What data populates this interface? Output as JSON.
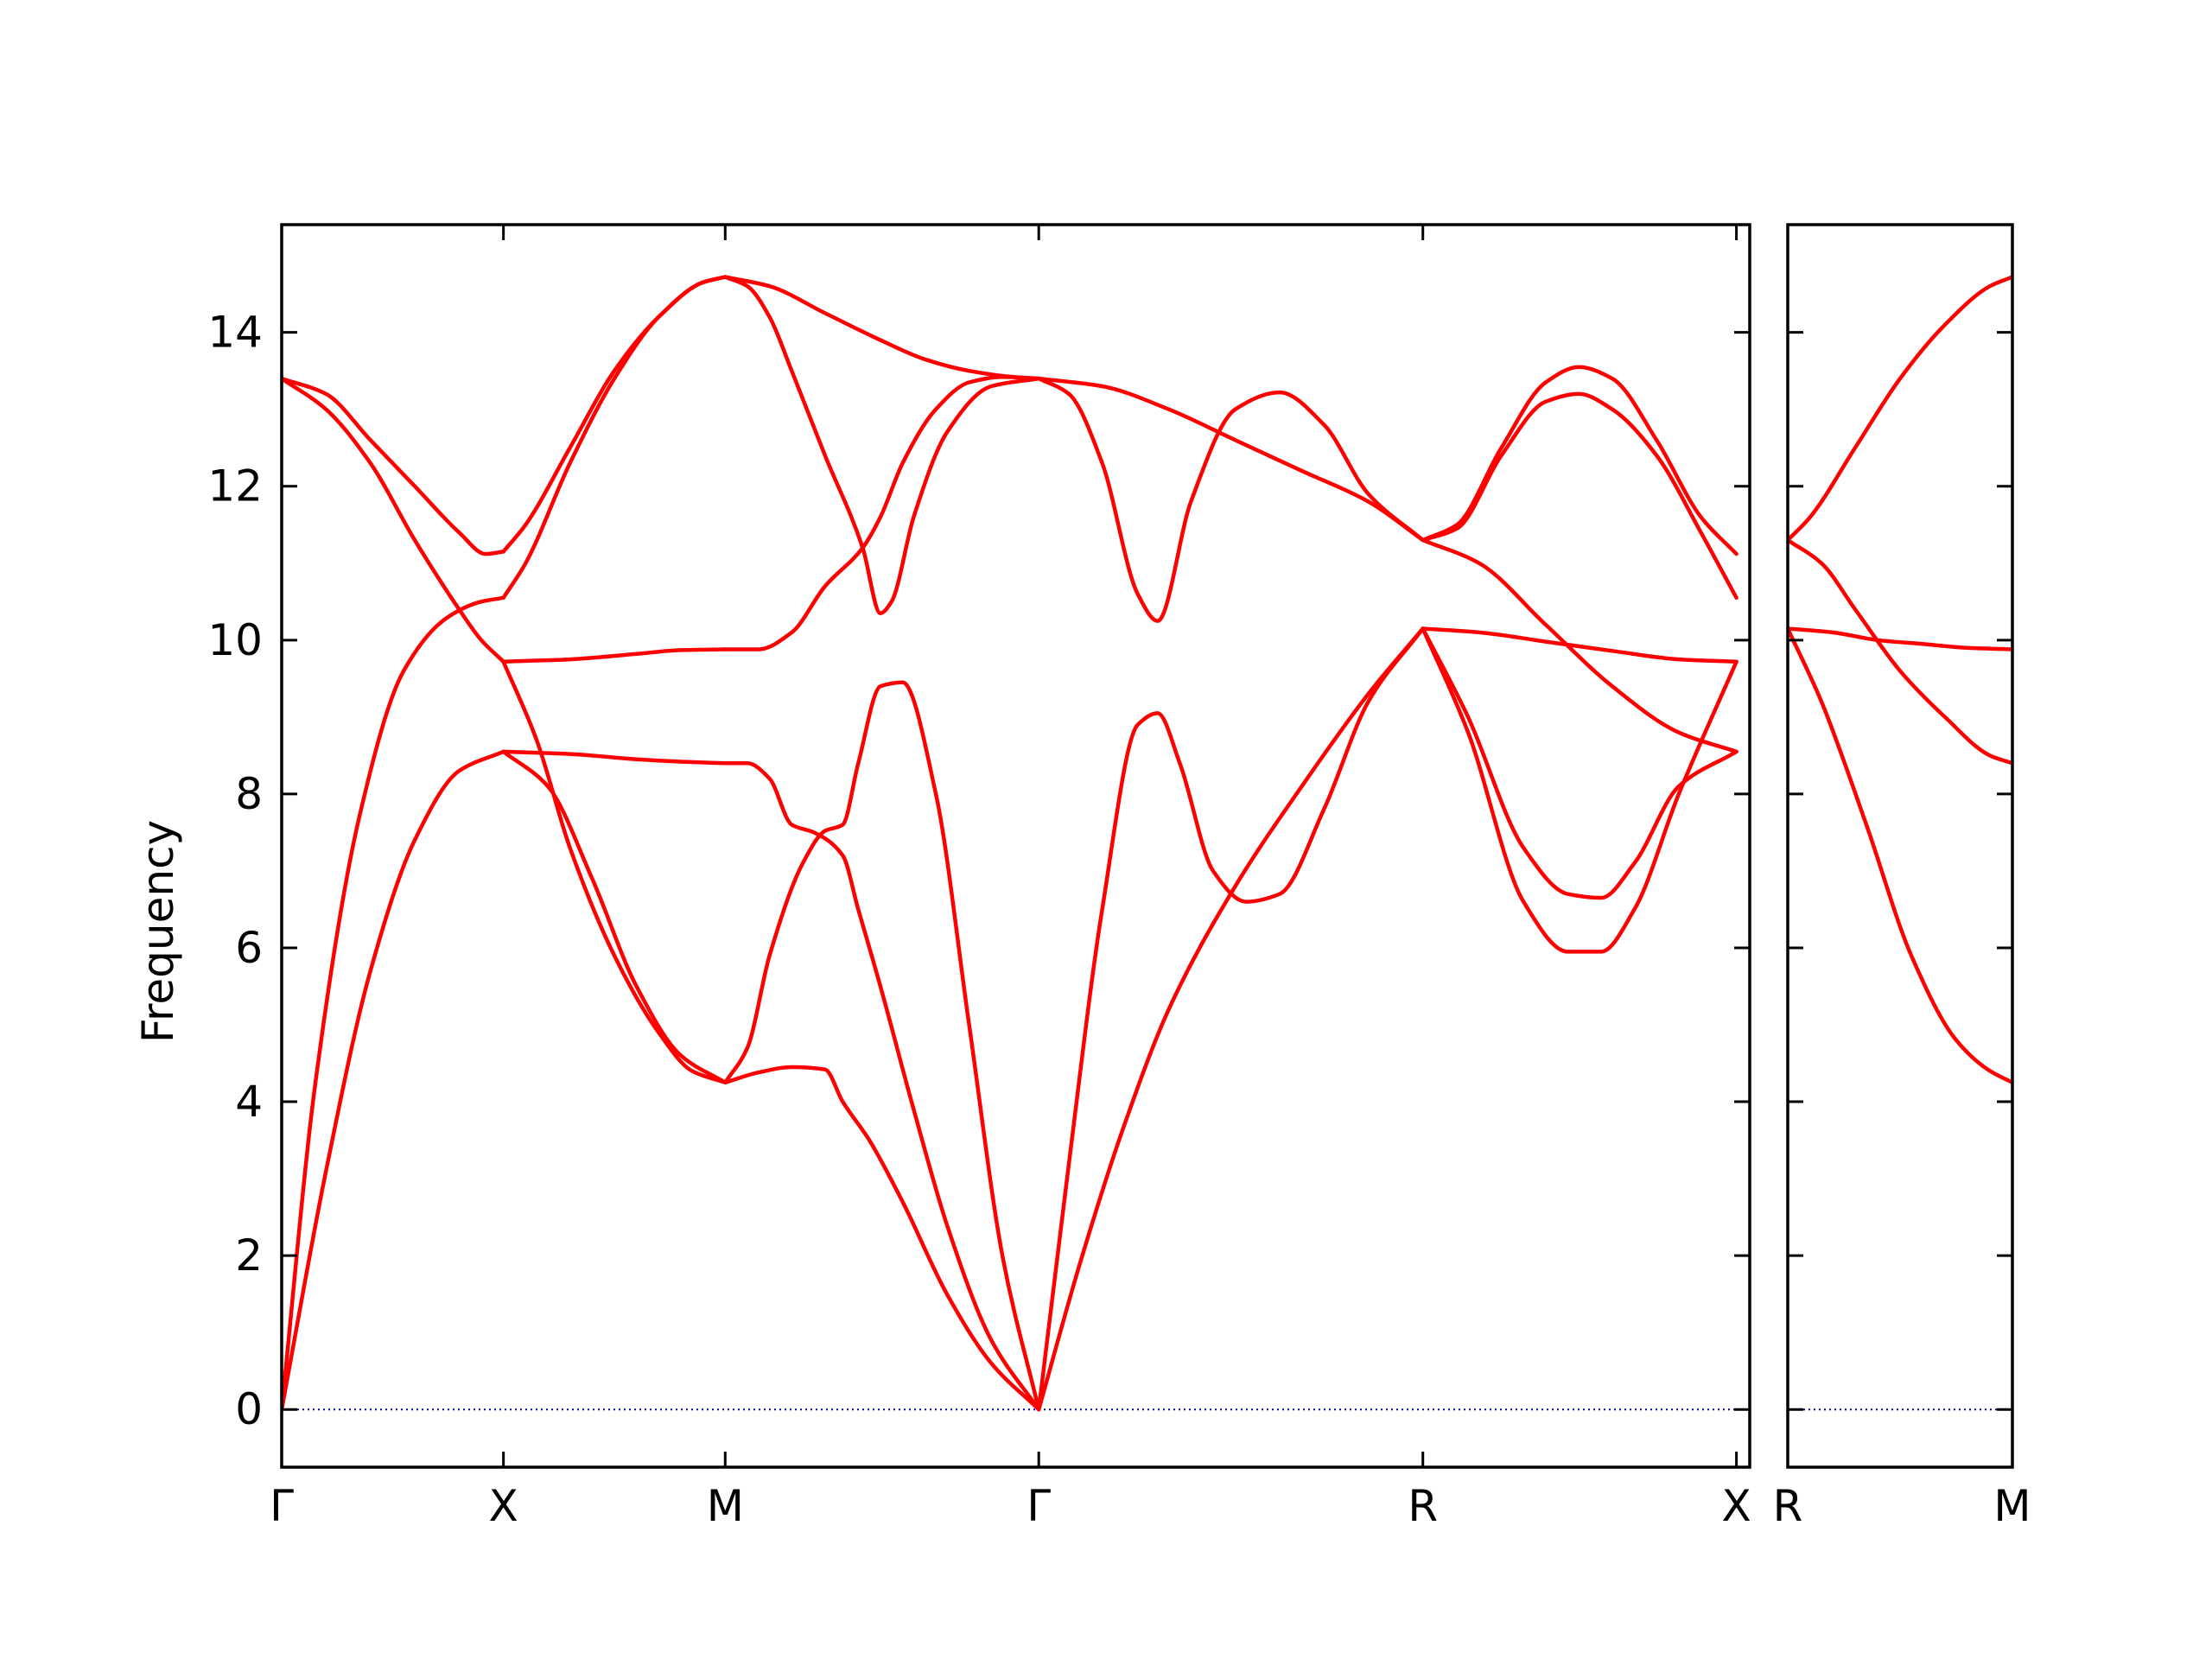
{
  "chart_data": {
    "type": "line",
    "ylabel": "Frequency",
    "ylim": [
      -0.75,
      15.4
    ],
    "yticks": [
      0,
      2,
      4,
      6,
      8,
      10,
      12,
      14
    ],
    "colors": {
      "band": "#ff0000",
      "zero_line": "#0000aa",
      "axis": "#000000"
    },
    "zero_line": {
      "y": 0,
      "style": "dotted"
    },
    "panels": [
      {
        "name": "main",
        "xlim": [
          0,
          6.62
        ],
        "x_ticks": [
          {
            "x": 0,
            "label": "Γ"
          },
          {
            "x": 1.0,
            "label": "X"
          },
          {
            "x": 2.0,
            "label": "M"
          },
          {
            "x": 3.414,
            "label": "Γ"
          },
          {
            "x": 5.146,
            "label": "R"
          },
          {
            "x": 6.56,
            "label": "X"
          }
        ],
        "series": [
          {
            "x": [
              0,
              0.2,
              0.4,
              0.6,
              0.8,
              1.0
            ],
            "y": [
              0,
              3.1,
              5.7,
              7.4,
              8.3,
              8.55
            ]
          },
          {
            "x": [
              0,
              0.15,
              0.35,
              0.55,
              0.75,
              0.9,
              1.0
            ],
            "y": [
              0,
              4.2,
              7.7,
              9.6,
              10.3,
              10.5,
              10.55
            ]
          },
          {
            "x": [
              0,
              0.2,
              0.4,
              0.6,
              0.8,
              0.92,
              1.0
            ],
            "y": [
              13.4,
              13.2,
              12.6,
              12.0,
              11.4,
              11.12,
              11.15
            ]
          },
          {
            "x": [
              0,
              0.2,
              0.4,
              0.6,
              0.8,
              0.9,
              1.0
            ],
            "y": [
              13.4,
              13.0,
              12.3,
              11.3,
              10.4,
              10.0,
              9.72
            ]
          },
          {
            "x": [
              1.0,
              1.2,
              1.4,
              1.6,
              1.8,
              2.0
            ],
            "y": [
              8.55,
              8.1,
              6.9,
              5.5,
              4.6,
              4.25
            ]
          },
          {
            "x": [
              1.0,
              1.15,
              1.3,
              1.5,
              1.7,
              1.85,
              2.0
            ],
            "y": [
              9.72,
              8.7,
              7.3,
              5.9,
              4.9,
              4.4,
              4.25
            ]
          },
          {
            "x": [
              1.0,
              1.3,
              1.6,
              1.8,
              2.0
            ],
            "y": [
              8.55,
              8.52,
              8.45,
              8.42,
              8.4
            ]
          },
          {
            "x": [
              1.0,
              1.3,
              1.6,
              1.8,
              2.0
            ],
            "y": [
              9.72,
              9.75,
              9.82,
              9.87,
              9.88
            ]
          },
          {
            "x": [
              1.0,
              1.1,
              1.3,
              1.5,
              1.7,
              1.9,
              2.0
            ],
            "y": [
              10.55,
              11.0,
              12.3,
              13.4,
              14.2,
              14.65,
              14.72
            ]
          },
          {
            "x": [
              1.0,
              1.1,
              1.3,
              1.5,
              1.7,
              1.9,
              2.0
            ],
            "y": [
              11.15,
              11.5,
              12.5,
              13.5,
              14.2,
              14.65,
              14.72
            ]
          },
          {
            "x": [
              2.0,
              2.1,
              2.2,
              2.35,
              2.45,
              2.53,
              2.6,
              2.7,
              2.8,
              2.95,
              3.1,
              3.25,
              3.414
            ],
            "y": [
              4.25,
              4.7,
              5.9,
              7.1,
              7.52,
              7.6,
              8.4,
              9.4,
              9.45,
              8.0,
              5.0,
              2.0,
              0
            ]
          },
          {
            "x": [
              2.0,
              2.15,
              2.3,
              2.45,
              2.53,
              2.65,
              2.8,
              3.0,
              3.2,
              3.414
            ],
            "y": [
              4.25,
              4.38,
              4.45,
              4.42,
              4.0,
              3.5,
              2.7,
              1.5,
              0.6,
              0
            ]
          },
          {
            "x": [
              2.0,
              2.1,
              2.2,
              2.3,
              2.4,
              2.53,
              2.6,
              2.7,
              2.85,
              3.0,
              3.2,
              3.414
            ],
            "y": [
              8.4,
              8.4,
              8.2,
              7.6,
              7.5,
              7.2,
              6.5,
              5.5,
              3.9,
              2.4,
              0.9,
              0
            ]
          },
          {
            "x": [
              2.0,
              2.15,
              2.3,
              2.45,
              2.62,
              2.7,
              2.8,
              2.95,
              3.1,
              3.25,
              3.414
            ],
            "y": [
              9.88,
              9.88,
              10.1,
              10.7,
              11.2,
              11.6,
              12.3,
              13.0,
              13.35,
              13.42,
              13.4
            ]
          },
          {
            "x": [
              2.0,
              2.1,
              2.2,
              2.3,
              2.45,
              2.62,
              2.7,
              2.75,
              2.85,
              3.0,
              3.2,
              3.414
            ],
            "y": [
              14.72,
              14.6,
              14.2,
              13.5,
              12.4,
              11.2,
              10.35,
              10.5,
              11.6,
              12.7,
              13.3,
              13.4
            ]
          },
          {
            "x": [
              2.0,
              2.2,
              2.45,
              2.7,
              2.9,
              3.1,
              3.3,
              3.414
            ],
            "y": [
              14.72,
              14.6,
              14.25,
              13.9,
              13.65,
              13.5,
              13.42,
              13.4
            ]
          },
          {
            "x": [
              3.414,
              3.6,
              3.8,
              4.0,
              4.3,
              4.6,
              4.9,
              5.146
            ],
            "y": [
              0,
              1.9,
              3.7,
              5.2,
              6.8,
              8.1,
              9.3,
              10.15
            ]
          },
          {
            "x": [
              3.414,
              3.55,
              3.7,
              3.86,
              3.95,
              4.05,
              4.2,
              4.35,
              4.5,
              4.7,
              4.9,
              5.146
            ],
            "y": [
              0,
              3.2,
              6.5,
              8.9,
              9.05,
              8.4,
              7.0,
              6.6,
              6.7,
              7.8,
              9.2,
              10.15
            ]
          },
          {
            "x": [
              3.414,
              3.55,
              3.7,
              3.86,
              3.95,
              4.1,
              4.3,
              4.5,
              4.7,
              4.9,
              5.146
            ],
            "y": [
              13.4,
              13.2,
              12.3,
              10.6,
              10.25,
              11.8,
              13.0,
              13.22,
              12.8,
              11.9,
              11.3
            ]
          },
          {
            "x": [
              3.414,
              3.7,
              4.0,
              4.3,
              4.6,
              4.9,
              5.146
            ],
            "y": [
              13.4,
              13.3,
              13.0,
              12.6,
              12.2,
              11.8,
              11.3
            ]
          },
          {
            "x": [
              5.146,
              5.4,
              5.7,
              6.0,
              6.3,
              6.56
            ],
            "y": [
              10.15,
              10.1,
              9.98,
              9.86,
              9.75,
              9.72
            ]
          },
          {
            "x": [
              5.146,
              5.35,
              5.6,
              5.8,
              5.95,
              6.1,
              6.3,
              6.56
            ],
            "y": [
              10.15,
              8.8,
              6.6,
              5.95,
              5.95,
              6.5,
              8.0,
              9.72
            ]
          },
          {
            "x": [
              5.146,
              5.35,
              5.6,
              5.8,
              5.95,
              6.1,
              6.3,
              6.56
            ],
            "y": [
              10.15,
              9.0,
              7.3,
              6.7,
              6.65,
              7.1,
              8.1,
              8.55
            ]
          },
          {
            "x": [
              5.146,
              5.4,
              5.7,
              6.0,
              6.3,
              6.56
            ],
            "y": [
              11.3,
              11.0,
              10.2,
              9.4,
              8.8,
              8.55
            ]
          },
          {
            "x": [
              5.146,
              5.3,
              5.5,
              5.7,
              5.85,
              6.0,
              6.2,
              6.4,
              6.56
            ],
            "y": [
              11.3,
              11.5,
              12.5,
              13.35,
              13.55,
              13.4,
              12.6,
              11.6,
              11.12
            ]
          },
          {
            "x": [
              5.146,
              5.3,
              5.5,
              5.7,
              5.85,
              6.0,
              6.2,
              6.4,
              6.56
            ],
            "y": [
              11.3,
              11.45,
              12.4,
              13.1,
              13.2,
              13.0,
              12.4,
              11.4,
              10.55
            ]
          }
        ]
      },
      {
        "name": "right",
        "xlim": [
          0,
          1.0
        ],
        "x_ticks": [
          {
            "x": 0,
            "label": "R"
          },
          {
            "x": 1.0,
            "label": "M"
          }
        ],
        "series": [
          {
            "x": [
              0,
              0.15,
              0.35,
              0.55,
              0.75,
              0.9,
              1.0
            ],
            "y": [
              10.15,
              9.2,
              7.6,
              5.9,
              4.8,
              4.4,
              4.25
            ]
          },
          {
            "x": [
              0,
              0.2,
              0.4,
              0.6,
              0.8,
              1.0
            ],
            "y": [
              10.15,
              10.1,
              10.0,
              9.95,
              9.9,
              9.88
            ]
          },
          {
            "x": [
              0,
              0.15,
              0.3,
              0.5,
              0.7,
              0.9,
              1.0
            ],
            "y": [
              11.3,
              11.0,
              10.4,
              9.6,
              9.0,
              8.5,
              8.4
            ]
          },
          {
            "x": [
              0,
              0.1,
              0.3,
              0.5,
              0.7,
              0.9,
              1.0
            ],
            "y": [
              11.3,
              11.6,
              12.5,
              13.4,
              14.1,
              14.6,
              14.72
            ]
          }
        ]
      }
    ]
  }
}
